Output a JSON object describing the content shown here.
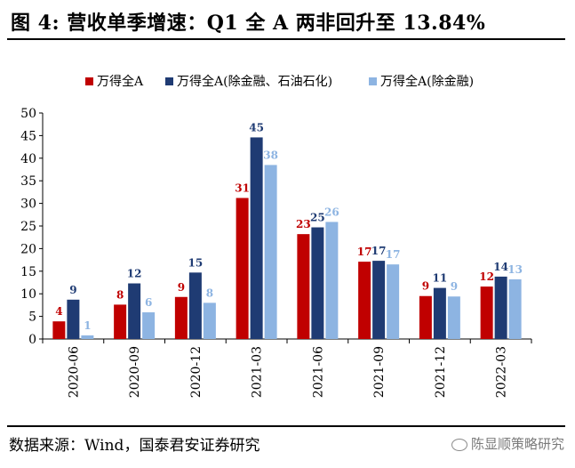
{
  "figure": {
    "title": "图 4: 营收单季增速：Q1 全 A 两非回升至 13.84%",
    "source": "数据来源：Wind，国泰君安证券研究",
    "watermark": "陈显顺策略研究"
  },
  "chart_data": {
    "type": "bar",
    "categories": [
      "2020-06",
      "2020-09",
      "2020-12",
      "2021-03",
      "2021-06",
      "2021-09",
      "2021-12",
      "2022-03"
    ],
    "series": [
      {
        "name": "万得全A",
        "color": "#c00000",
        "values": [
          4,
          8,
          9,
          31,
          23,
          17,
          9,
          12
        ],
        "display_values": [
          3.9,
          7.6,
          9.3,
          31.2,
          23.2,
          17.1,
          9.5,
          11.6
        ]
      },
      {
        "name": "万得全A(除金融、石油石化)",
        "color": "#1f3b73",
        "values": [
          9,
          12,
          15,
          45,
          25,
          17,
          11,
          14
        ],
        "display_values": [
          8.7,
          12.3,
          14.7,
          44.6,
          24.7,
          17.3,
          11.3,
          13.8
        ]
      },
      {
        "name": "万得全A(除金融)",
        "color": "#8db4e2",
        "values": [
          1,
          6,
          8,
          38,
          26,
          17,
          9,
          13
        ],
        "display_values": [
          0.8,
          5.9,
          8.0,
          38.5,
          25.9,
          16.5,
          9.4,
          13.2
        ]
      }
    ],
    "yticks": [
      0,
      5,
      10,
      15,
      20,
      25,
      30,
      35,
      40,
      45,
      50
    ],
    "ylim": [
      0,
      50
    ],
    "legend_position": "top",
    "grid": false
  }
}
